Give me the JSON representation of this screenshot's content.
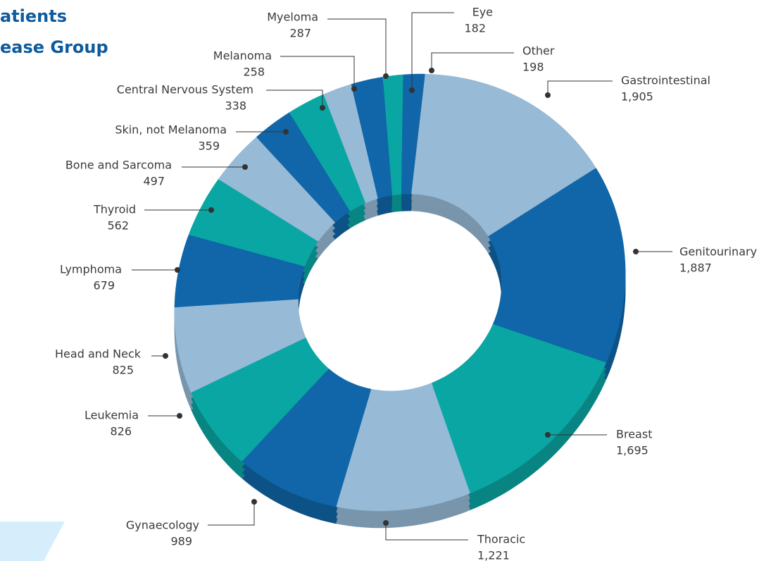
{
  "chart_data": {
    "type": "donut",
    "title_lines": [
      "atients",
      "ease Group"
    ],
    "categories": [
      "Eye",
      "Other",
      "Gastrointestinal",
      "Genitourinary",
      "Breast",
      "Thoracic",
      "Gynaecology",
      "Leukemia",
      "Head and Neck",
      "Lymphoma",
      "Thyroid",
      "Bone and Sarcoma",
      "Skin, not Melanoma",
      "Central Nervous System",
      "Melanoma",
      "Myeloma"
    ],
    "values": [
      182,
      198,
      1905,
      1887,
      1695,
      1221,
      989,
      826,
      825,
      679,
      562,
      497,
      359,
      338,
      258,
      287
    ],
    "value_labels": [
      "182",
      "198",
      "1,905",
      "1,887",
      "1,695",
      "1,221",
      "989",
      "826",
      "825",
      "679",
      "562",
      "497",
      "359",
      "338",
      "258",
      "287"
    ],
    "colors": [
      "#0aa6a3",
      "#1066a8",
      "#97bad6",
      "#1066a8",
      "#0aa6a3",
      "#97bad6",
      "#1066a8",
      "#0aa6a3",
      "#97bad6",
      "#1066a8",
      "#0aa6a3",
      "#97bad6",
      "#1066a8",
      "#0aa6a3",
      "#97bad6",
      "#1066a8"
    ]
  }
}
